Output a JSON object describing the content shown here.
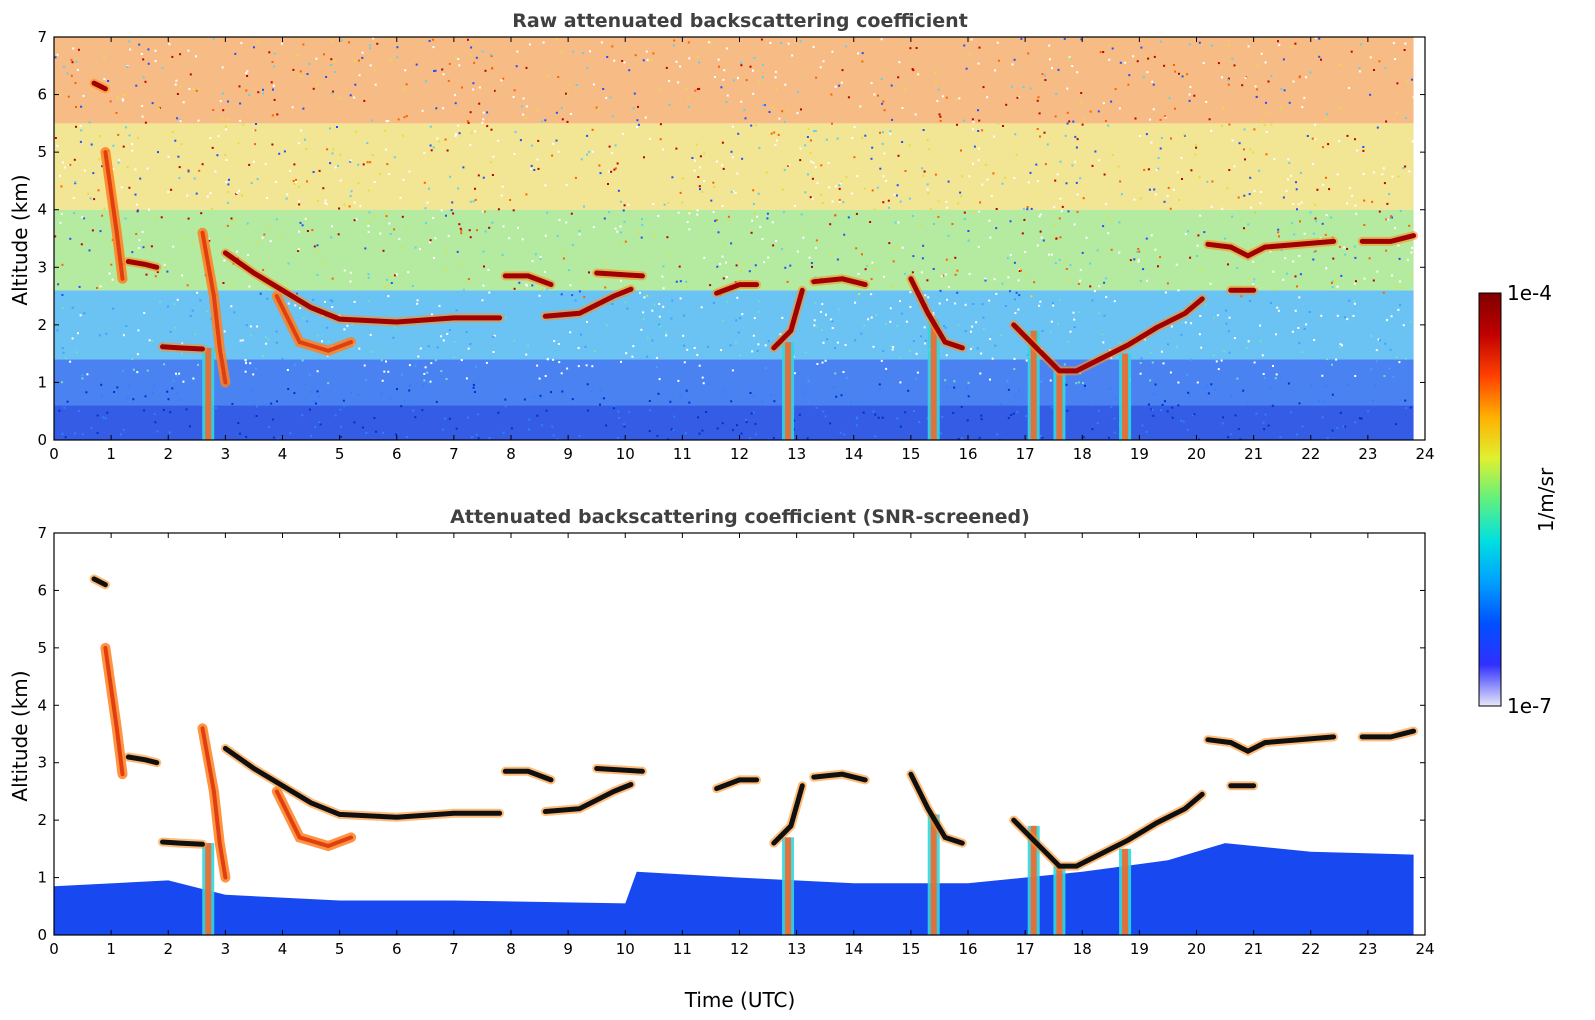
{
  "chart_data": [
    {
      "type": "heatmap",
      "title": "Raw attenuated backscattering coefficient",
      "xlabel": "",
      "ylabel": "Altitude (km)",
      "xlim": [
        0,
        24
      ],
      "ylim": [
        0,
        7
      ],
      "x_ticks": [
        "0",
        "1",
        "2",
        "3",
        "4",
        "5",
        "6",
        "7",
        "8",
        "9",
        "10",
        "11",
        "12",
        "13",
        "14",
        "15",
        "16",
        "17",
        "18",
        "19",
        "20",
        "21",
        "22",
        "23",
        "24"
      ],
      "y_ticks": [
        "0",
        "1",
        "2",
        "3",
        "4",
        "5",
        "6",
        "7"
      ],
      "data_end_x": 23.8,
      "screened": false,
      "features": [
        {
          "kind": "cloud-layer",
          "points": [
            [
              0.7,
              6.2
            ],
            [
              0.9,
              6.1
            ]
          ]
        },
        {
          "kind": "cloud-layer",
          "points": [
            [
              1.3,
              3.1
            ],
            [
              1.6,
              3.05
            ],
            [
              1.8,
              3.0
            ]
          ]
        },
        {
          "kind": "cloud-layer",
          "points": [
            [
              1.9,
              1.62
            ],
            [
              2.2,
              1.6
            ],
            [
              2.6,
              1.58
            ]
          ]
        },
        {
          "kind": "cloud-layer",
          "points": [
            [
              3.0,
              3.25
            ],
            [
              3.5,
              2.9
            ],
            [
              4.0,
              2.6
            ],
            [
              4.5,
              2.3
            ],
            [
              5.0,
              2.1
            ],
            [
              6.0,
              2.05
            ],
            [
              7.0,
              2.12
            ],
            [
              7.8,
              2.12
            ]
          ]
        },
        {
          "kind": "cloud-layer",
          "points": [
            [
              7.9,
              2.85
            ],
            [
              8.3,
              2.85
            ],
            [
              8.7,
              2.7
            ]
          ]
        },
        {
          "kind": "cloud-layer",
          "points": [
            [
              8.6,
              2.15
            ],
            [
              9.2,
              2.2
            ],
            [
              9.8,
              2.5
            ],
            [
              10.1,
              2.62
            ]
          ]
        },
        {
          "kind": "cloud-layer",
          "points": [
            [
              9.5,
              2.9
            ],
            [
              10.3,
              2.85
            ]
          ]
        },
        {
          "kind": "cloud-layer",
          "points": [
            [
              11.6,
              2.55
            ],
            [
              12.0,
              2.7
            ],
            [
              12.3,
              2.7
            ]
          ]
        },
        {
          "kind": "cloud-layer",
          "points": [
            [
              12.6,
              1.6
            ],
            [
              12.9,
              1.9
            ],
            [
              13.1,
              2.6
            ]
          ]
        },
        {
          "kind": "cloud-layer",
          "points": [
            [
              13.3,
              2.75
            ],
            [
              13.8,
              2.8
            ],
            [
              14.2,
              2.7
            ]
          ]
        },
        {
          "kind": "cloud-layer",
          "points": [
            [
              15.0,
              2.8
            ],
            [
              15.3,
              2.2
            ],
            [
              15.6,
              1.7
            ],
            [
              15.9,
              1.6
            ]
          ]
        },
        {
          "kind": "cloud-layer",
          "points": [
            [
              16.8,
              2.0
            ],
            [
              17.2,
              1.6
            ],
            [
              17.6,
              1.2
            ],
            [
              17.9,
              1.2
            ],
            [
              18.3,
              1.4
            ],
            [
              18.8,
              1.65
            ],
            [
              19.3,
              1.95
            ],
            [
              19.8,
              2.2
            ],
            [
              20.1,
              2.45
            ]
          ]
        },
        {
          "kind": "cloud-layer",
          "points": [
            [
              20.2,
              3.4
            ],
            [
              20.6,
              3.35
            ],
            [
              20.9,
              3.2
            ],
            [
              21.2,
              3.35
            ],
            [
              21.8,
              3.4
            ],
            [
              22.4,
              3.45
            ]
          ]
        },
        {
          "kind": "cloud-layer",
          "points": [
            [
              22.9,
              3.45
            ],
            [
              23.4,
              3.45
            ],
            [
              23.8,
              3.55
            ]
          ]
        },
        {
          "kind": "cloud-layer",
          "points": [
            [
              20.6,
              2.6
            ],
            [
              21.0,
              2.6
            ]
          ]
        },
        {
          "kind": "fall-streak",
          "points": [
            [
              2.6,
              3.6
            ],
            [
              2.8,
              2.5
            ],
            [
              2.9,
              1.6
            ],
            [
              3.0,
              1.0
            ]
          ]
        },
        {
          "kind": "fall-streak",
          "points": [
            [
              0.9,
              5.0
            ],
            [
              1.1,
              3.6
            ],
            [
              1.2,
              2.8
            ]
          ]
        },
        {
          "kind": "fall-streak",
          "points": [
            [
              3.9,
              2.5
            ],
            [
              4.3,
              1.7
            ],
            [
              4.8,
              1.55
            ],
            [
              5.2,
              1.7
            ]
          ]
        },
        {
          "kind": "precip-shaft",
          "x": 2.7,
          "top": 1.6
        },
        {
          "kind": "precip-shaft",
          "x": 12.85,
          "top": 1.7
        },
        {
          "kind": "precip-shaft",
          "x": 15.4,
          "top": 2.1
        },
        {
          "kind": "precip-shaft",
          "x": 17.15,
          "top": 1.9
        },
        {
          "kind": "precip-shaft",
          "x": 17.6,
          "top": 1.2
        },
        {
          "kind": "precip-shaft",
          "x": 18.75,
          "top": 1.5
        }
      ]
    },
    {
      "type": "heatmap",
      "title": "Attenuated backscattering coefficient (SNR-screened)",
      "xlabel": "Time (UTC)",
      "ylabel": "Altitude (km)",
      "xlim": [
        0,
        24
      ],
      "ylim": [
        0,
        7
      ],
      "x_ticks": [
        "0",
        "1",
        "2",
        "3",
        "4",
        "5",
        "6",
        "7",
        "8",
        "9",
        "10",
        "11",
        "12",
        "13",
        "14",
        "15",
        "16",
        "17",
        "18",
        "19",
        "20",
        "21",
        "22",
        "23",
        "24"
      ],
      "y_ticks": [
        "0",
        "1",
        "2",
        "3",
        "4",
        "5",
        "6",
        "7"
      ],
      "data_end_x": 23.8,
      "screened": true,
      "features_same_as_panel": 0
    }
  ],
  "colorbar": {
    "label": "1/m/sr",
    "min_label": "1e-7",
    "max_label": "1e-4",
    "scale": "log",
    "colormap": "jet",
    "colors": [
      "#e8e8f8",
      "#3030ff",
      "#0050ff",
      "#00a0ff",
      "#00e0e0",
      "#60f080",
      "#e0f030",
      "#ffb000",
      "#ff4000",
      "#c00000",
      "#800000"
    ]
  }
}
